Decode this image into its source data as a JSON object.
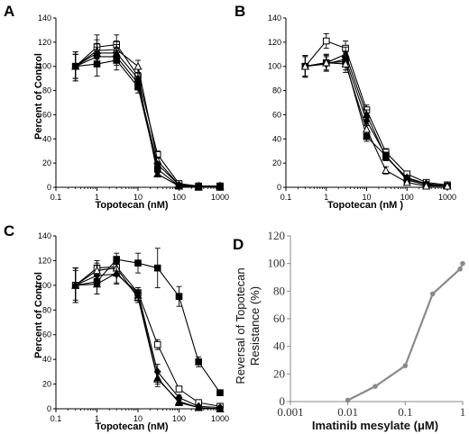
{
  "chart_data": [
    {
      "panel": "A",
      "type": "line",
      "xscale": "log",
      "xlim": [
        0.1,
        1000
      ],
      "ylim": [
        0,
        140
      ],
      "xticks": [
        "0.1",
        "1",
        "10",
        "100",
        "1000"
      ],
      "yticks": [
        "0",
        "20",
        "40",
        "60",
        "80",
        "100",
        "120",
        "140"
      ],
      "xlabel": "Topotecan (nM)",
      "ylabel": "Percent of Control",
      "x": [
        0.3,
        1,
        3,
        10,
        30,
        100,
        300,
        1000
      ],
      "series": [
        {
          "marker": "open-square",
          "values": [
            100,
            116,
            118,
            92,
            27,
            3,
            1,
            1
          ],
          "errors": [
            12,
            10,
            8,
            6,
            3,
            1,
            1,
            1
          ]
        },
        {
          "marker": "open-triangle",
          "values": [
            100,
            113,
            114,
            100,
            22,
            2,
            1,
            1
          ],
          "errors": [
            10,
            9,
            7,
            5,
            3,
            1,
            1,
            1
          ]
        },
        {
          "marker": "filled-triangle",
          "values": [
            100,
            111,
            111,
            90,
            11,
            1,
            0,
            0
          ],
          "errors": [
            10,
            8,
            7,
            5,
            2,
            1,
            1,
            1
          ]
        },
        {
          "marker": "filled-diamond",
          "values": [
            100,
            108,
            108,
            86,
            19,
            2,
            1,
            1
          ],
          "errors": [
            10,
            8,
            7,
            5,
            2,
            1,
            1,
            1
          ]
        },
        {
          "marker": "filled-square",
          "values": [
            100,
            102,
            105,
            83,
            15,
            1,
            1,
            1
          ],
          "errors": [
            12,
            10,
            8,
            5,
            3,
            1,
            1,
            1
          ]
        }
      ]
    },
    {
      "panel": "B",
      "type": "line",
      "xscale": "log",
      "xlim": [
        0.1,
        1000
      ],
      "ylim": [
        0,
        140
      ],
      "xticks": [
        "0.1",
        "1",
        "10",
        "100",
        "1000"
      ],
      "yticks": [
        "0",
        "20",
        "40",
        "60",
        "80",
        "100",
        "120",
        "140"
      ],
      "xlabel": "Topotecan (nM )",
      "ylabel": "",
      "x": [
        0.3,
        1,
        3,
        10,
        30,
        100,
        300,
        1000
      ],
      "series": [
        {
          "marker": "open-square",
          "values": [
            100,
            121,
            115,
            64,
            29,
            11,
            4,
            2
          ],
          "errors": [
            8,
            6,
            6,
            4,
            3,
            2,
            1,
            1
          ]
        },
        {
          "marker": "filled-triangle",
          "values": [
            100,
            103,
            110,
            60,
            25,
            8,
            3,
            1
          ],
          "errors": [
            8,
            6,
            6,
            4,
            3,
            2,
            1,
            1
          ]
        },
        {
          "marker": "filled-diamond",
          "values": [
            100,
            102,
            106,
            55,
            26,
            7,
            3,
            1
          ],
          "errors": [
            8,
            6,
            6,
            4,
            3,
            2,
            1,
            1
          ]
        },
        {
          "marker": "filled-square",
          "values": [
            100,
            103,
            104,
            42,
            26,
            6,
            2,
            1
          ],
          "errors": [
            9,
            7,
            7,
            4,
            3,
            2,
            1,
            1
          ]
        },
        {
          "marker": "open-triangle",
          "values": [
            100,
            103,
            102,
            48,
            14,
            4,
            1,
            1
          ],
          "errors": [
            9,
            7,
            7,
            4,
            3,
            2,
            1,
            1
          ]
        }
      ]
    },
    {
      "panel": "C",
      "type": "line",
      "xscale": "log",
      "xlim": [
        0.1,
        1000
      ],
      "ylim": [
        0,
        140
      ],
      "xticks": [
        "0.1",
        "1",
        "10",
        "100",
        "1000"
      ],
      "yticks": [
        "0",
        "20",
        "40",
        "60",
        "80",
        "100",
        "120",
        "140"
      ],
      "xlabel": "Topotecan (nM)",
      "ylabel": "Percent of Control",
      "x": [
        0.3,
        1,
        3,
        10,
        30,
        100,
        300,
        1000
      ],
      "series": [
        {
          "marker": "filled-square",
          "values": [
            100,
            103,
            121,
            118,
            114,
            91,
            38,
            13
          ],
          "errors": [
            12,
            10,
            5,
            8,
            16,
            8,
            4,
            1
          ]
        },
        {
          "marker": "open-square",
          "values": [
            100,
            114,
            115,
            94,
            52,
            16,
            5,
            2
          ],
          "errors": [
            14,
            4,
            6,
            4,
            4,
            2,
            1,
            1
          ]
        },
        {
          "marker": "filled-diamond",
          "values": [
            100,
            108,
            109,
            94,
            30,
            9,
            2,
            1
          ],
          "errors": [
            14,
            8,
            8,
            4,
            6,
            2,
            1,
            1
          ]
        },
        {
          "marker": "open-triangle",
          "values": [
            100,
            112,
            114,
            90,
            24,
            6,
            1,
            0
          ],
          "errors": [
            14,
            8,
            6,
            4,
            6,
            2,
            1,
            1
          ]
        },
        {
          "marker": "filled-triangle",
          "values": [
            100,
            101,
            110,
            92,
            25,
            5,
            1,
            0
          ],
          "errors": [
            14,
            8,
            8,
            4,
            5,
            2,
            1,
            1
          ]
        }
      ]
    },
    {
      "panel": "D",
      "type": "line",
      "xscale": "log",
      "xlim": [
        0.001,
        1
      ],
      "ylim": [
        0,
        120
      ],
      "xticks": [
        "0.001",
        "0.01",
        "0.1",
        "1"
      ],
      "yticks": [
        "0",
        "20",
        "40",
        "60",
        "80",
        "100",
        "120"
      ],
      "xlabel": "Imatinib mesylate (μM)",
      "ylabel_lines": [
        "Reversal of Topotecan",
        "Resistance (%)"
      ],
      "color": "#8a8a8a",
      "x": [
        0.01,
        0.03,
        0.1,
        0.3,
        0.9,
        1
      ],
      "values": [
        1,
        11,
        26,
        78,
        96,
        100
      ]
    }
  ]
}
